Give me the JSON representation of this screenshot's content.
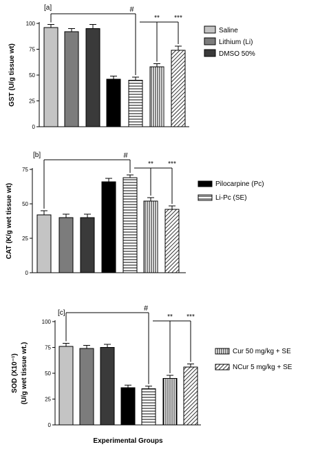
{
  "figure": {
    "xlabel": "Experimental Groups"
  },
  "legend_items": [
    {
      "label": "Saline",
      "fill": "#c4c4c4",
      "pattern": "solid"
    },
    {
      "label": "Lithium (Li)",
      "fill": "#7c7c7c",
      "pattern": "solid"
    },
    {
      "label": "DMSO 50%",
      "fill": "#3a3a3a",
      "pattern": "solid"
    },
    {
      "label": "Pilocarpine (Pc)",
      "fill": "#000000",
      "pattern": "solid"
    },
    {
      "label": "Li-Pc (SE)",
      "fill": "#ffffff",
      "pattern": "hstripe"
    },
    {
      "label": "Cur 50 mg/kg + SE",
      "fill": "#ffffff",
      "pattern": "vstripe"
    },
    {
      "label": "NCur 5 mg/kg + SE",
      "fill": "#ffffff",
      "pattern": "diag"
    }
  ],
  "chart_data": [
    {
      "type": "bar",
      "panel_label": "[a]",
      "ylabel": "GST (U/g tissue wt)",
      "ylim": [
        0,
        100
      ],
      "yticks": [
        "0",
        "25",
        "50",
        "75",
        "100"
      ],
      "series_names": [
        "Saline",
        "Lithium (Li)",
        "DMSO 50%",
        "Pilocarpine (Pc)",
        "Li-Pc (SE)",
        "Cur 50 mg/kg + SE",
        "NCur 5 mg/kg + SE"
      ],
      "values": [
        96,
        92,
        95,
        46,
        45,
        58,
        74
      ],
      "errors": [
        3,
        3,
        4,
        3,
        3,
        3,
        4
      ],
      "annotations": {
        "hash": "#",
        "sig1": "**",
        "sig2": "***"
      }
    },
    {
      "type": "bar",
      "panel_label": "[b]",
      "ylabel": "CAT (K/g wet tissue wt)",
      "ylim": [
        0,
        75
      ],
      "yticks": [
        "0",
        "25",
        "50",
        "75"
      ],
      "series_names": [
        "Saline",
        "Lithium (Li)",
        "DMSO 50%",
        "Pilocarpine (Pc)",
        "Li-Pc (SE)",
        "Cur 50 mg/kg + SE",
        "NCur 5 mg/kg + SE"
      ],
      "values": [
        42,
        40,
        40,
        66,
        69,
        52,
        46
      ],
      "errors": [
        3,
        2.5,
        2.5,
        2.5,
        2,
        2.5,
        2.5
      ],
      "annotations": {
        "hash": "#",
        "sig1": "**",
        "sig2": "***"
      }
    },
    {
      "type": "bar",
      "panel_label": "[c]",
      "ylabel_line1": "SOD (X10⁻¹)",
      "ylabel_line2": "(U/g wet tissue wt.)",
      "ylim": [
        0,
        100
      ],
      "yticks": [
        "0",
        "25",
        "50",
        "75",
        "100"
      ],
      "series_names": [
        "Saline",
        "Lithium (Li)",
        "DMSO 50%",
        "Pilocarpine (Pc)",
        "Li-Pc (SE)",
        "Cur 50 mg/kg + SE",
        "NCur 5 mg/kg + SE"
      ],
      "values": [
        76,
        74,
        75,
        36,
        35,
        45,
        56
      ],
      "errors": [
        3,
        3,
        3,
        2.5,
        2.5,
        3,
        3
      ],
      "annotations": {
        "hash": "#",
        "sig1": "**",
        "sig2": "***"
      }
    }
  ]
}
